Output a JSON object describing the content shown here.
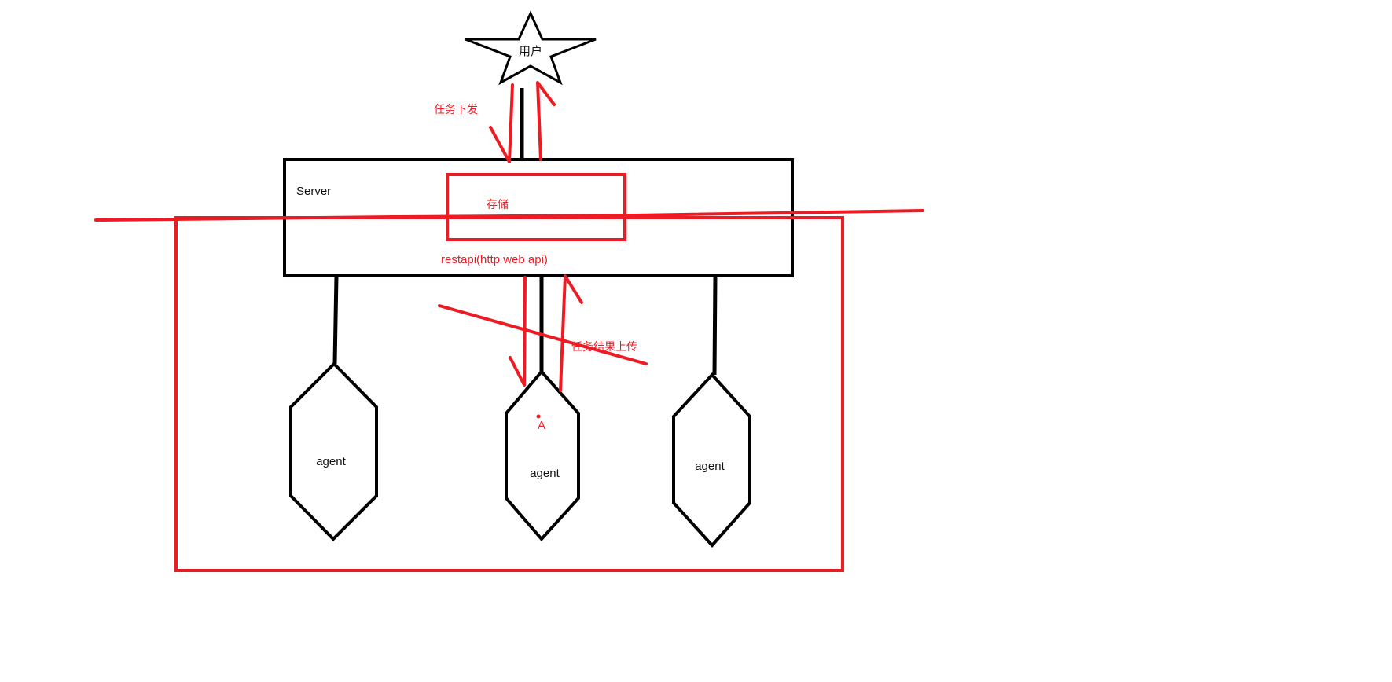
{
  "colors": {
    "ink": "#000000",
    "annotation": "#ed1c24",
    "background": "#ffffff"
  },
  "nodes": {
    "user_label": "用户",
    "server_label": "Server",
    "storage_label": "存储",
    "api_label": "restapi(http web api)",
    "agents": [
      {
        "label": "agent"
      },
      {
        "label": "agent",
        "marker": "A"
      },
      {
        "label": "agent"
      }
    ]
  },
  "annotations": {
    "task_dispatch": "任务下发",
    "result_upload": "任务结果上传"
  },
  "icons": {
    "user": "star-icon",
    "agent": "hexagon-icon"
  }
}
